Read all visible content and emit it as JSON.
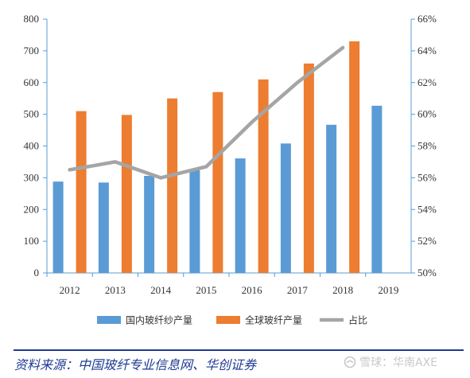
{
  "chart_data": {
    "type": "bar",
    "categories": [
      "2012",
      "2013",
      "2014",
      "2015",
      "2016",
      "2017",
      "2018",
      "2019"
    ],
    "series": [
      {
        "name": "国内玻纤纱产量",
        "type": "bar",
        "axis": "left",
        "color": "#5b9bd5",
        "values": [
          288,
          285,
          306,
          324,
          361,
          408,
          467,
          527
        ]
      },
      {
        "name": "全球玻纤产量",
        "type": "bar",
        "axis": "right-unused",
        "color": "#ed7d31",
        "values": [
          510,
          498,
          550,
          570,
          610,
          660,
          730,
          null
        ]
      },
      {
        "name": "占比",
        "type": "line",
        "axis": "right",
        "color": "#a5a5a5",
        "values": [
          0.565,
          0.57,
          0.56,
          0.567,
          0.595,
          0.62,
          0.642,
          null
        ]
      }
    ],
    "y_left": {
      "min": 0,
      "max": 800,
      "step": 100,
      "ticks": [
        "0",
        "100",
        "200",
        "300",
        "400",
        "500",
        "600",
        "700",
        "800"
      ]
    },
    "y_right": {
      "min": 0.5,
      "max": 0.66,
      "step": 0.02,
      "ticks": [
        "50%",
        "52%",
        "54%",
        "56%",
        "58%",
        "60%",
        "62%",
        "64%",
        "66%"
      ]
    },
    "grid": false,
    "legend_position": "bottom"
  },
  "source": "资料来源：中国玻纤专业信息网、华创证券",
  "watermark": "雪球：华南AXE",
  "colors": {
    "axis": "#5b9bd5",
    "source": "#1f3a93"
  }
}
